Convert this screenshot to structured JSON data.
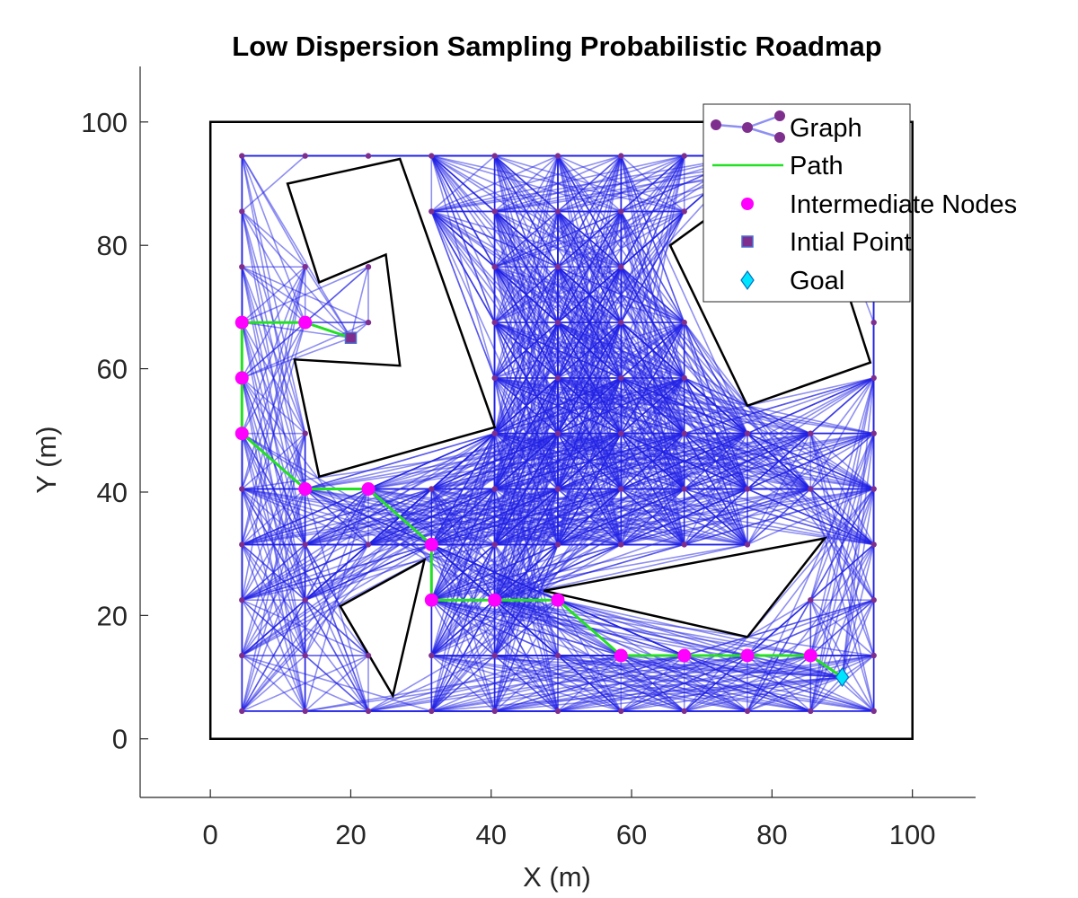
{
  "chart_data": {
    "type": "scatter",
    "title": "Low Dispersion Sampling Probabilistic Roadmap",
    "xlabel": "X (m)",
    "ylabel": "Y (m)",
    "xlim": [
      -10,
      109
    ],
    "ylim": [
      -9.5,
      109
    ],
    "xticks": [
      0,
      20,
      40,
      60,
      80,
      100
    ],
    "yticks": [
      0,
      20,
      40,
      60,
      80,
      100
    ],
    "grid": false,
    "legend_position": "top-right",
    "legend": [
      {
        "key": "graph",
        "label": "Graph"
      },
      {
        "key": "path",
        "label": "Path"
      },
      {
        "key": "intermediate",
        "label": "Intermediate Nodes"
      },
      {
        "key": "start",
        "label": "Intial Point"
      },
      {
        "key": "goal",
        "label": "Goal"
      }
    ],
    "colors": {
      "edge": "#1f1fe6",
      "node": "#7e2f8e",
      "path": "#22e022",
      "intermediate": "#ff00ff",
      "start_face": "#7e2f8e",
      "start_edge": "#4a6fd0",
      "goal": "#00e5ff",
      "obstacle": "#000000"
    },
    "grid_nodes": {
      "x": [
        4.5,
        13.5,
        22.5,
        31.5,
        40.5,
        49.5,
        58.5,
        67.5,
        76.5,
        85.5,
        94.5
      ],
      "y": [
        4.5,
        13.5,
        22.5,
        31.5,
        40.5,
        49.5,
        58.5,
        67.5,
        76.5,
        85.5,
        94.5
      ]
    },
    "boundary": [
      [
        0,
        0
      ],
      [
        100,
        0
      ],
      [
        100,
        100
      ],
      [
        0,
        100
      ]
    ],
    "obstacles": [
      [
        [
          11,
          90
        ],
        [
          27,
          94
        ],
        [
          40.5,
          50.5
        ],
        [
          15.5,
          42.5
        ],
        [
          12,
          61.5
        ],
        [
          27,
          60.5
        ],
        [
          25,
          78.5
        ],
        [
          15.5,
          74
        ],
        [
          11,
          90
        ]
      ],
      [
        [
          18.5,
          21.5
        ],
        [
          30.5,
          29
        ],
        [
          26,
          7
        ],
        [
          18.5,
          21.5
        ]
      ],
      [
        [
          47.5,
          24
        ],
        [
          87.5,
          32.5
        ],
        [
          76.5,
          16.5
        ],
        [
          47.5,
          24
        ]
      ],
      [
        [
          76.5,
          54
        ],
        [
          94,
          61
        ],
        [
          87.5,
          84
        ],
        [
          80,
          92
        ],
        [
          65.5,
          80
        ],
        [
          76.5,
          54
        ]
      ]
    ],
    "path": [
      [
        20,
        65
      ],
      [
        13.5,
        67.5
      ],
      [
        4.5,
        67.5
      ],
      [
        4.5,
        58.5
      ],
      [
        4.5,
        49.5
      ],
      [
        13.5,
        40.5
      ],
      [
        22.5,
        40.5
      ],
      [
        31.5,
        31.5
      ],
      [
        31.5,
        22.5
      ],
      [
        40.5,
        22.5
      ],
      [
        49.5,
        22.5
      ],
      [
        58.5,
        13.5
      ],
      [
        67.5,
        13.5
      ],
      [
        76.5,
        13.5
      ],
      [
        85.5,
        13.5
      ],
      [
        90,
        10
      ]
    ],
    "intermediate_nodes": [
      [
        13.5,
        67.5
      ],
      [
        4.5,
        67.5
      ],
      [
        4.5,
        58.5
      ],
      [
        4.5,
        49.5
      ],
      [
        13.5,
        40.5
      ],
      [
        22.5,
        40.5
      ],
      [
        31.5,
        31.5
      ],
      [
        31.5,
        22.5
      ],
      [
        40.5,
        22.5
      ],
      [
        49.5,
        22.5
      ],
      [
        58.5,
        13.5
      ],
      [
        67.5,
        13.5
      ],
      [
        76.5,
        13.5
      ],
      [
        85.5,
        13.5
      ]
    ],
    "start": [
      20,
      65
    ],
    "goal": [
      90,
      10
    ]
  }
}
